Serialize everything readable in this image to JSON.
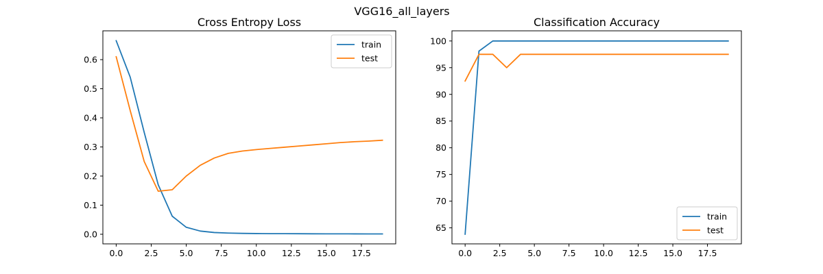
{
  "figure": {
    "suptitle": "VGG16_all_layers"
  },
  "chart_data": [
    {
      "type": "line",
      "title": "Cross Entropy Loss",
      "xlabel": "",
      "ylabel": "",
      "xlim": [
        -0.95,
        19.95
      ],
      "ylim": [
        -0.033,
        0.699
      ],
      "xticks": [
        0.0,
        2.5,
        5.0,
        7.5,
        10.0,
        12.5,
        15.0,
        17.5
      ],
      "xtick_labels": [
        "0.0",
        "2.5",
        "5.0",
        "7.5",
        "10.0",
        "12.5",
        "15.0",
        "17.5"
      ],
      "yticks": [
        0.0,
        0.1,
        0.2,
        0.3,
        0.4,
        0.5,
        0.6
      ],
      "ytick_labels": [
        "0.0",
        "0.1",
        "0.2",
        "0.3",
        "0.4",
        "0.5",
        "0.6"
      ],
      "grid": false,
      "legend": "upper right",
      "x": [
        0,
        1,
        2,
        3,
        4,
        5,
        6,
        7,
        8,
        9,
        10,
        11,
        12,
        13,
        14,
        15,
        16,
        17,
        18,
        19
      ],
      "series": [
        {
          "name": "train",
          "color": "#1f77b4",
          "values": [
            0.665,
            0.54,
            0.35,
            0.17,
            0.062,
            0.024,
            0.011,
            0.006,
            0.004,
            0.003,
            0.0025,
            0.002,
            0.002,
            0.0018,
            0.0016,
            0.0015,
            0.0014,
            0.0013,
            0.0012,
            0.0011
          ]
        },
        {
          "name": "test",
          "color": "#ff7f0e",
          "values": [
            0.61,
            0.425,
            0.25,
            0.148,
            0.153,
            0.2,
            0.237,
            0.262,
            0.278,
            0.286,
            0.291,
            0.295,
            0.299,
            0.303,
            0.307,
            0.311,
            0.315,
            0.318,
            0.32,
            0.323
          ]
        }
      ]
    },
    {
      "type": "line",
      "title": "Classification Accuracy",
      "xlabel": "",
      "ylabel": "",
      "xlim": [
        -0.95,
        19.95
      ],
      "ylim": [
        62.0,
        101.9
      ],
      "xticks": [
        0.0,
        2.5,
        5.0,
        7.5,
        10.0,
        12.5,
        15.0,
        17.5
      ],
      "xtick_labels": [
        "0.0",
        "2.5",
        "5.0",
        "7.5",
        "10.0",
        "12.5",
        "15.0",
        "17.5"
      ],
      "yticks": [
        65,
        70,
        75,
        80,
        85,
        90,
        95,
        100
      ],
      "ytick_labels": [
        "65",
        "70",
        "75",
        "80",
        "85",
        "90",
        "95",
        "100"
      ],
      "grid": false,
      "legend": "lower right",
      "x": [
        0,
        1,
        2,
        3,
        4,
        5,
        6,
        7,
        8,
        9,
        10,
        11,
        12,
        13,
        14,
        15,
        16,
        17,
        18,
        19
      ],
      "series": [
        {
          "name": "train",
          "color": "#1f77b4",
          "values": [
            63.8,
            98.1,
            100,
            100,
            100,
            100,
            100,
            100,
            100,
            100,
            100,
            100,
            100,
            100,
            100,
            100,
            100,
            100,
            100,
            100
          ]
        },
        {
          "name": "test",
          "color": "#ff7f0e",
          "values": [
            92.5,
            97.5,
            97.5,
            95.0,
            97.5,
            97.5,
            97.5,
            97.5,
            97.5,
            97.5,
            97.5,
            97.5,
            97.5,
            97.5,
            97.5,
            97.5,
            97.5,
            97.5,
            97.5,
            97.5
          ]
        }
      ]
    }
  ]
}
